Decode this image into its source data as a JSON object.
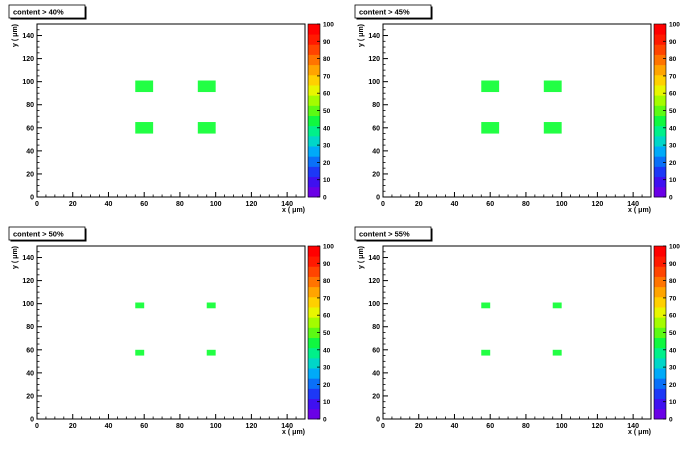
{
  "chart_data": [
    {
      "type": "heatmap",
      "title": "content > 40%",
      "xlabel": "x ( μm)",
      "ylabel": "y ( μm)",
      "xlim": [
        0,
        150
      ],
      "ylim": [
        0,
        150
      ],
      "x_ticks": [
        "0",
        "20",
        "40",
        "60",
        "80",
        "100",
        "120",
        "140"
      ],
      "y_ticks": [
        "0",
        "20",
        "40",
        "60",
        "80",
        "100",
        "120",
        "140"
      ],
      "z_range": [
        0,
        100
      ],
      "colorbar_ticks": [
        "0",
        "10",
        "20",
        "30",
        "40",
        "50",
        "60",
        "70",
        "80",
        "90",
        "100"
      ],
      "cells": [
        {
          "x0": 55,
          "x1": 65,
          "y0": 91,
          "y1": 101,
          "value": 50
        },
        {
          "x0": 90,
          "x1": 100,
          "y0": 91,
          "y1": 101,
          "value": 50
        },
        {
          "x0": 55,
          "x1": 65,
          "y0": 55,
          "y1": 65,
          "value": 50
        },
        {
          "x0": 90,
          "x1": 100,
          "y0": 55,
          "y1": 65,
          "value": 50
        }
      ]
    },
    {
      "type": "heatmap",
      "title": "content > 45%",
      "xlabel": "x ( μm)",
      "ylabel": "y ( μm)",
      "xlim": [
        0,
        150
      ],
      "ylim": [
        0,
        150
      ],
      "x_ticks": [
        "0",
        "20",
        "40",
        "60",
        "80",
        "100",
        "120",
        "140"
      ],
      "y_ticks": [
        "0",
        "20",
        "40",
        "60",
        "80",
        "100",
        "120",
        "140"
      ],
      "z_range": [
        0,
        100
      ],
      "colorbar_ticks": [
        "0",
        "10",
        "20",
        "30",
        "40",
        "50",
        "60",
        "70",
        "80",
        "90",
        "100"
      ],
      "cells": [
        {
          "x0": 55,
          "x1": 65,
          "y0": 91,
          "y1": 101,
          "value": 50
        },
        {
          "x0": 90,
          "x1": 100,
          "y0": 91,
          "y1": 101,
          "value": 50
        },
        {
          "x0": 55,
          "x1": 65,
          "y0": 55,
          "y1": 65,
          "value": 50
        },
        {
          "x0": 90,
          "x1": 100,
          "y0": 55,
          "y1": 65,
          "value": 50
        }
      ]
    },
    {
      "type": "heatmap",
      "title": "content > 50%",
      "xlabel": "x ( μm)",
      "ylabel": "y ( μm)",
      "xlim": [
        0,
        150
      ],
      "ylim": [
        0,
        150
      ],
      "x_ticks": [
        "0",
        "20",
        "40",
        "60",
        "80",
        "100",
        "120",
        "140"
      ],
      "y_ticks": [
        "0",
        "20",
        "40",
        "60",
        "80",
        "100",
        "120",
        "140"
      ],
      "z_range": [
        0,
        100
      ],
      "colorbar_ticks": [
        "0",
        "10",
        "20",
        "30",
        "40",
        "50",
        "60",
        "70",
        "80",
        "90",
        "100"
      ],
      "cells": [
        {
          "x0": 55,
          "x1": 60,
          "y0": 96,
          "y1": 101,
          "value": 50
        },
        {
          "x0": 95,
          "x1": 100,
          "y0": 96,
          "y1": 101,
          "value": 50
        },
        {
          "x0": 55,
          "x1": 60,
          "y0": 55,
          "y1": 60,
          "value": 50
        },
        {
          "x0": 95,
          "x1": 100,
          "y0": 55,
          "y1": 60,
          "value": 50
        }
      ]
    },
    {
      "type": "heatmap",
      "title": "content > 55%",
      "xlabel": "x ( μm)",
      "ylabel": "y ( μm)",
      "xlim": [
        0,
        150
      ],
      "ylim": [
        0,
        150
      ],
      "x_ticks": [
        "0",
        "20",
        "40",
        "60",
        "80",
        "100",
        "120",
        "140"
      ],
      "y_ticks": [
        "0",
        "20",
        "40",
        "60",
        "80",
        "100",
        "120",
        "140"
      ],
      "z_range": [
        0,
        100
      ],
      "colorbar_ticks": [
        "0",
        "10",
        "20",
        "30",
        "40",
        "50",
        "60",
        "70",
        "80",
        "90",
        "100"
      ],
      "cells": [
        {
          "x0": 55,
          "x1": 60,
          "y0": 96,
          "y1": 101,
          "value": 50
        },
        {
          "x0": 95,
          "x1": 100,
          "y0": 96,
          "y1": 101,
          "value": 50
        },
        {
          "x0": 55,
          "x1": 60,
          "y0": 55,
          "y1": 60,
          "value": 50
        },
        {
          "x0": 95,
          "x1": 100,
          "y0": 55,
          "y1": 60,
          "value": 50
        }
      ]
    }
  ],
  "colors": {
    "cell_fill": "#22ff44",
    "palette": [
      "#6a00e6",
      "#3f10f0",
      "#1d38f6",
      "#0a70f8",
      "#00aaf8",
      "#00d6c8",
      "#00f08a",
      "#10f840",
      "#5cfa14",
      "#a4fc00",
      "#e8f600",
      "#ffd000",
      "#ffa400",
      "#ff7400",
      "#ff4400",
      "#ff1a00",
      "#ff0000"
    ]
  }
}
